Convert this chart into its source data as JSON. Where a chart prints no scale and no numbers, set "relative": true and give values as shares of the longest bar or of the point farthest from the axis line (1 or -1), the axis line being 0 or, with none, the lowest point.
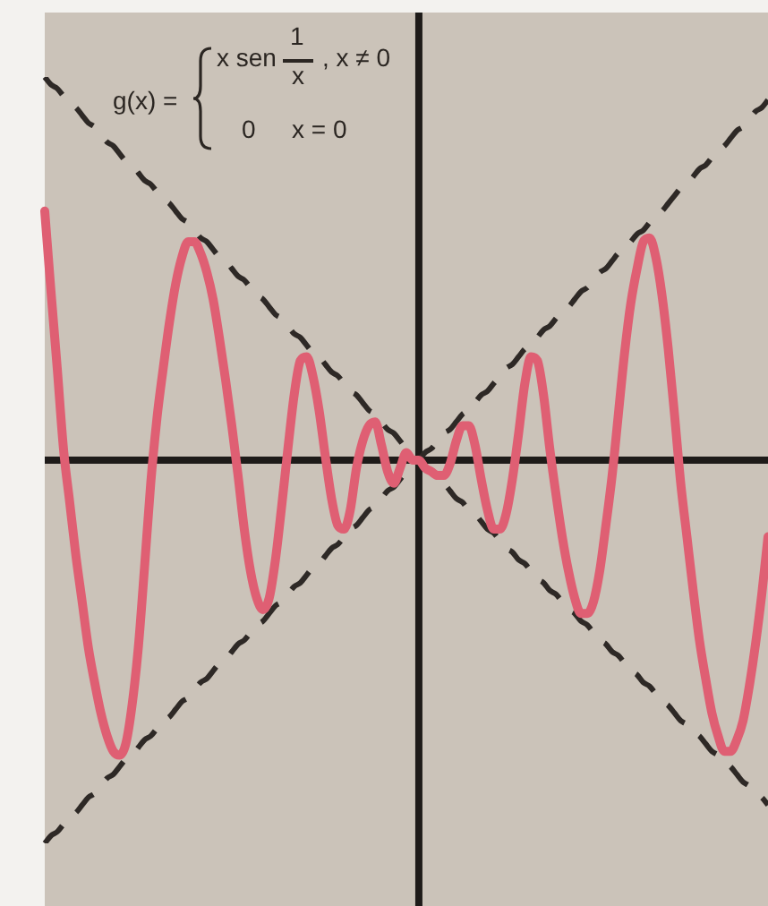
{
  "chart_data": {
    "type": "line",
    "relative": true,
    "marker": "none",
    "annotations": [
      "g(x) =",
      "x sen",
      "1",
      "x",
      ", x ≠ 0",
      "0",
      "x = 0"
    ],
    "categories": [
      null,
      null,
      null,
      null,
      null,
      null,
      null,
      null,
      null,
      null,
      null,
      null,
      null,
      null,
      null,
      null,
      null,
      null,
      null,
      null,
      null,
      null,
      null,
      null,
      null,
      null,
      null,
      null,
      null,
      null,
      null,
      null,
      null,
      null,
      null,
      null,
      null,
      null,
      null,
      null,
      null,
      null,
      null,
      null,
      null,
      null,
      null,
      null,
      null,
      null,
      null,
      null,
      null,
      null,
      null,
      null,
      null,
      null,
      null,
      null,
      null,
      null,
      null,
      null,
      null,
      null,
      null,
      null,
      null,
      null,
      null,
      null,
      null,
      null,
      null,
      null,
      null,
      null,
      null,
      null,
      null,
      null,
      null,
      null,
      null,
      null,
      null,
      null,
      null,
      null,
      null,
      null,
      null,
      null,
      null,
      null,
      null,
      null,
      null,
      null,
      null,
      null,
      null,
      null,
      null,
      null,
      null,
      null,
      null,
      null,
      null,
      null,
      null,
      null,
      null,
      null,
      null
    ],
    "series": [
      {
        "color": "#df5f73",
        "values": [
          0.65,
          0.44,
          0.24,
          0.03,
          -0.11,
          -0.25,
          -0.37,
          -0.49,
          -0.58,
          -0.66,
          -0.72,
          -0.76,
          -0.77,
          -0.74,
          -0.64,
          -0.49,
          -0.28,
          -0.06,
          0.11,
          0.24,
          0.36,
          0.46,
          0.53,
          0.57,
          0.57,
          0.54,
          0.49,
          0.42,
          0.32,
          0.21,
          0.09,
          -0.04,
          -0.18,
          -0.29,
          -0.36,
          -0.39,
          -0.36,
          -0.26,
          -0.12,
          0.03,
          0.17,
          0.26,
          0.27,
          0.22,
          0.13,
          0.01,
          -0.1,
          -0.17,
          -0.18,
          -0.13,
          -0.02,
          0.05,
          0.09,
          0.1,
          0.04,
          -0.03,
          -0.06,
          -0.02,
          0.02,
          0,
          0,
          -0.02,
          -0.03,
          -0.04,
          -0.04,
          -0.01,
          0.05,
          0.09,
          0.09,
          0.04,
          -0.05,
          -0.13,
          -0.18,
          -0.18,
          -0.14,
          -0.05,
          0.07,
          0.2,
          0.27,
          0.26,
          0.17,
          0.03,
          -0.09,
          -0.2,
          -0.29,
          -0.36,
          -0.4,
          -0.4,
          -0.37,
          -0.29,
          -0.17,
          -0.04,
          0.12,
          0.28,
          0.41,
          0.5,
          0.57,
          0.58,
          0.53,
          0.43,
          0.29,
          0.12,
          -0.06,
          -0.2,
          -0.34,
          -0.47,
          -0.57,
          -0.66,
          -0.72,
          -0.76,
          -0.76,
          -0.73,
          -0.68,
          -0.59,
          -0.48,
          -0.35,
          -0.2
        ]
      },
      {
        "color": "#2e2926",
        "line_style": "dashed",
        "values": [
          1,
          0.98,
          0.97,
          0.95,
          0.93,
          0.92,
          0.9,
          0.88,
          0.87,
          0.85,
          0.83,
          0.82,
          0.8,
          0.78,
          0.77,
          0.75,
          0.73,
          0.72,
          0.7,
          0.68,
          0.67,
          0.65,
          0.63,
          0.62,
          0.6,
          0.58,
          0.57,
          0.55,
          0.53,
          0.52,
          0.5,
          0.48,
          0.47,
          0.45,
          0.43,
          0.42,
          0.4,
          0.38,
          0.37,
          0.35,
          0.33,
          0.32,
          0.3,
          0.28,
          0.27,
          0.25,
          0.23,
          0.22,
          0.2,
          0.18,
          0.17,
          0.15,
          0.13,
          0.12,
          0.1,
          0.08,
          0.07,
          0.05,
          0.03,
          0.02,
          0,
          -0.02,
          -0.03,
          -0.05,
          -0.06,
          -0.08,
          -0.1,
          -0.11,
          -0.13,
          -0.14,
          -0.16,
          -0.18,
          -0.19,
          -0.21,
          -0.23,
          -0.24,
          -0.26,
          -0.27,
          -0.29,
          -0.31,
          -0.32,
          -0.34,
          -0.35,
          -0.37,
          -0.39,
          -0.4,
          -0.42,
          -0.43,
          -0.45,
          -0.47,
          -0.48,
          -0.5,
          -0.51,
          -0.53,
          -0.55,
          -0.56,
          -0.58,
          -0.59,
          -0.61,
          -0.63,
          -0.64,
          -0.66,
          -0.68,
          -0.69,
          -0.71,
          -0.72,
          -0.74,
          -0.76,
          -0.77,
          -0.79,
          -0.8,
          -0.82,
          -0.84,
          -0.85,
          -0.87,
          -0.88,
          -0.9
        ]
      },
      {
        "color": "#2e2926",
        "line_style": "dashed",
        "values": [
          -1,
          -0.98,
          -0.97,
          -0.95,
          -0.93,
          -0.92,
          -0.9,
          -0.88,
          -0.87,
          -0.85,
          -0.83,
          -0.82,
          -0.8,
          -0.78,
          -0.77,
          -0.75,
          -0.73,
          -0.72,
          -0.7,
          -0.68,
          -0.67,
          -0.65,
          -0.63,
          -0.62,
          -0.6,
          -0.58,
          -0.57,
          -0.55,
          -0.53,
          -0.52,
          -0.5,
          -0.48,
          -0.47,
          -0.45,
          -0.43,
          -0.42,
          -0.4,
          -0.38,
          -0.37,
          -0.35,
          -0.33,
          -0.32,
          -0.3,
          -0.28,
          -0.27,
          -0.25,
          -0.23,
          -0.22,
          -0.2,
          -0.18,
          -0.17,
          -0.15,
          -0.13,
          -0.12,
          -0.1,
          -0.08,
          -0.07,
          -0.05,
          -0.03,
          -0.02,
          0,
          0.02,
          0.03,
          0.05,
          0.07,
          0.08,
          0.1,
          0.12,
          0.13,
          0.15,
          0.17,
          0.18,
          0.2,
          0.22,
          0.24,
          0.25,
          0.27,
          0.29,
          0.3,
          0.32,
          0.34,
          0.35,
          0.37,
          0.39,
          0.4,
          0.42,
          0.44,
          0.45,
          0.47,
          0.49,
          0.5,
          0.52,
          0.54,
          0.55,
          0.57,
          0.59,
          0.6,
          0.62,
          0.64,
          0.65,
          0.67,
          0.69,
          0.71,
          0.72,
          0.74,
          0.76,
          0.77,
          0.79,
          0.81,
          0.82,
          0.84,
          0.86,
          0.87,
          0.89,
          0.91,
          0.92,
          0.94
        ]
      }
    ]
  }
}
